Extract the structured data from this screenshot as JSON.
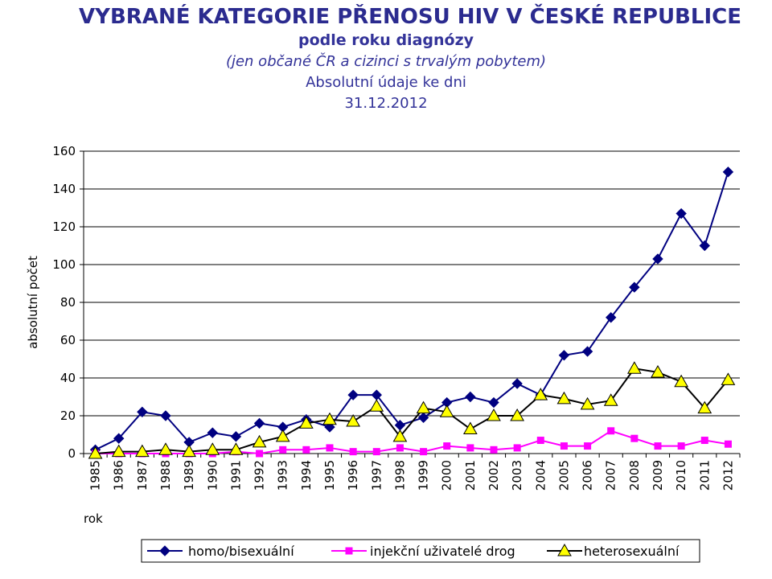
{
  "header": {
    "title": "VYBRANÉ KATEGORIE PŘENOSU HIV V ČESKÉ REPUBLICE",
    "subtitle": "podle roku diagnózy",
    "note": "(jen občané ČR a cizinci s trvalým pobytem)",
    "data_type": "Absolutní údaje ke dni",
    "date": "31.12.2012"
  },
  "chart_data": {
    "type": "line",
    "ylabel": "absolutní počet",
    "xlabel": "rok",
    "ylim": [
      0,
      160
    ],
    "yticks": [
      0,
      20,
      40,
      60,
      80,
      100,
      120,
      140,
      160
    ],
    "grid": true,
    "legend_position": "bottom",
    "categories": [
      "1985",
      "1986",
      "1987",
      "1988",
      "1989",
      "1990",
      "1991",
      "1992",
      "1993",
      "1994",
      "1995",
      "1996",
      "1997",
      "1998",
      "1999",
      "2000",
      "2001",
      "2002",
      "2003",
      "2004",
      "2005",
      "2006",
      "2007",
      "2008",
      "2009",
      "2010",
      "2011",
      "2012"
    ],
    "series": [
      {
        "name": "homo/bisexuální",
        "color": "#000080",
        "marker": "diamond",
        "values": [
          2,
          8,
          22,
          20,
          6,
          11,
          9,
          16,
          14,
          18,
          14,
          31,
          31,
          15,
          19,
          27,
          30,
          27,
          37,
          31,
          52,
          54,
          72,
          88,
          103,
          127,
          110,
          149
        ]
      },
      {
        "name": "injekční uživatelé drog",
        "color": "#ff00ff",
        "marker": "square",
        "values": [
          0,
          0,
          0,
          0,
          0,
          0,
          1,
          0,
          2,
          2,
          3,
          1,
          1,
          3,
          1,
          4,
          3,
          2,
          3,
          7,
          4,
          4,
          12,
          8,
          4,
          4,
          7,
          5
        ]
      },
      {
        "name": "heterosexuální",
        "color": "#000000",
        "markerFill": "#ffff00",
        "marker": "triangle",
        "values": [
          0,
          1,
          1,
          2,
          1,
          2,
          2,
          6,
          9,
          16,
          18,
          17,
          25,
          9,
          24,
          22,
          13,
          20,
          20,
          31,
          29,
          26,
          28,
          45,
          43,
          38,
          24,
          39
        ]
      }
    ]
  }
}
